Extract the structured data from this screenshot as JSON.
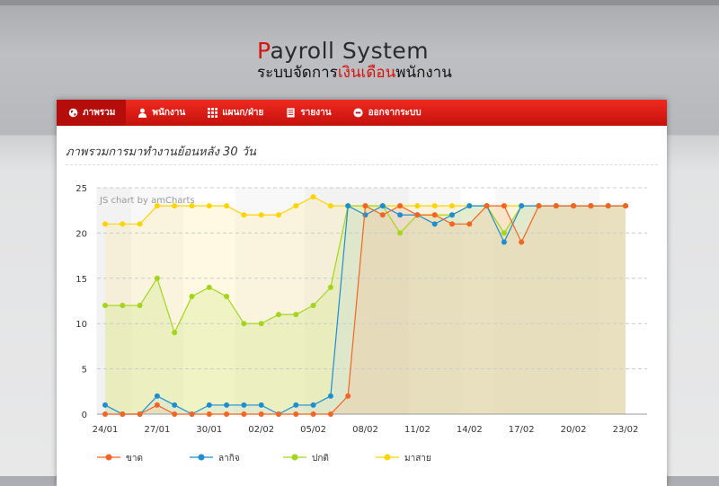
{
  "logo": {
    "title_first": "P",
    "title_rest": "ayroll System",
    "subtitle_dark1": "ระบบจัดการ",
    "subtitle_red": "เงินเดือน",
    "subtitle_dark2": "พนักงาน"
  },
  "nav": {
    "items": [
      {
        "label": "ภาพรวม",
        "icon": "globe-icon"
      },
      {
        "label": "พนักงาน",
        "icon": "user-icon"
      },
      {
        "label": "แผนก/ฝ่าย",
        "icon": "grid-icon"
      },
      {
        "label": "รายงาน",
        "icon": "document-icon"
      },
      {
        "label": "ออกจากระบบ",
        "icon": "minus-circle-icon"
      }
    ]
  },
  "section": {
    "title": "ภาพรวมการมาทำงานย้อนหลัง 30 วัน"
  },
  "chart_data": {
    "type": "line",
    "credit": "JS chart by amCharts",
    "x_tick_labels": [
      "24/01",
      "27/01",
      "30/01",
      "02/02",
      "05/02",
      "08/02",
      "11/02",
      "14/02",
      "17/02",
      "20/02",
      "23/02"
    ],
    "ylim": [
      0,
      25
    ],
    "y_ticks": [
      0,
      5,
      10,
      15,
      20,
      25
    ],
    "grid": true,
    "legend_position": "bottom",
    "series": [
      {
        "name": "ขาด",
        "color": "#f26522",
        "values": [
          0,
          0,
          0,
          1,
          0,
          0,
          0,
          0,
          0,
          0,
          0,
          0,
          0,
          0,
          2,
          23,
          22,
          23,
          22,
          22,
          21,
          21,
          23,
          23,
          19,
          23,
          23,
          23,
          23,
          23,
          23
        ]
      },
      {
        "name": "ลากิจ",
        "color": "#1e8ed0",
        "values": [
          1,
          0,
          0,
          2,
          1,
          0,
          1,
          1,
          1,
          1,
          0,
          1,
          1,
          2,
          23,
          22,
          23,
          22,
          22,
          21,
          22,
          23,
          23,
          19,
          23,
          23,
          23,
          23,
          23,
          23,
          23
        ]
      },
      {
        "name": "ปกติ",
        "color": "#a3d51c",
        "values": [
          12,
          12,
          12,
          15,
          9,
          13,
          14,
          13,
          10,
          10,
          11,
          11,
          12,
          14,
          23,
          23,
          23,
          20,
          22,
          22,
          22,
          23,
          23,
          20,
          23,
          23,
          23,
          23,
          23,
          23,
          23
        ]
      },
      {
        "name": "มาสาย",
        "color": "#ffd400",
        "values": [
          21,
          21,
          21,
          23,
          23,
          23,
          23,
          23,
          22,
          22,
          22,
          23,
          24,
          23,
          23,
          23,
          23,
          23,
          23,
          23,
          23,
          23,
          23,
          23,
          23,
          23,
          23,
          23,
          23,
          23,
          23
        ]
      }
    ]
  }
}
